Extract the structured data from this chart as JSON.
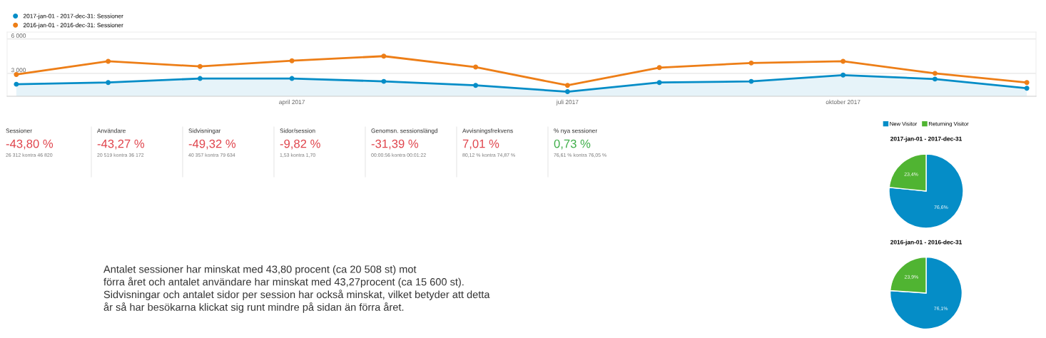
{
  "chart_data": [
    {
      "type": "line",
      "categories": [
        null,
        null,
        null,
        "april 2017",
        null,
        null,
        "juli 2017",
        null,
        null,
        "oktober 2017",
        null,
        null
      ],
      "series": [
        {
          "name": "2017-jan-01 - 2017-dec-31: Sessioner",
          "type": "area",
          "color": "#058dc7",
          "values": [
            2050,
            2200,
            2550,
            2550,
            2300,
            1950,
            1400,
            2200,
            2300,
            2850,
            2500,
            1700
          ]
        },
        {
          "name": "2016-jan-01 - 2016-dec-31: Sessioner",
          "type": "line",
          "color": "#ed7e17",
          "values": [
            2900,
            4050,
            3600,
            4100,
            4500,
            3550,
            1950,
            3500,
            3900,
            4050,
            3000,
            2200
          ]
        }
      ],
      "ylim": [
        1000,
        6600
      ],
      "yticks": [
        {
          "value": 3000,
          "label": "3 000"
        },
        {
          "value": 6000,
          "label": "6 000"
        }
      ],
      "grid": "y",
      "legend": "top left",
      "marker": "circle",
      "line_style": "solid"
    },
    {
      "type": "other",
      "categories": [
        "Sessioner",
        "Användare",
        "Sidvisningar",
        "Sidor/session",
        "Genomsn. sessionslängd",
        "Avvisningsfrekvens",
        "% nya sessioner"
      ],
      "value_labels": [
        "-43,80 %",
        "-43,27 %",
        "-49,32 %",
        "-9,82 %",
        "-31,39 %",
        "7,01 %",
        "0,73 %"
      ],
      "colors": [
        "#e0464e",
        "#e0464e",
        "#e0464e",
        "#e0464e",
        "#e0464e",
        "#e0464e",
        "#3fae49"
      ],
      "annotations": [
        "26 312 kontra 46 820",
        "20 519 kontra 36 172",
        "40 357 kontra 79 634",
        "1,53 kontra 1,70",
        "00:00:56 kontra 00:01:22",
        "80,12 % kontra 74,87 %",
        "76,61 % kontra 76,05 %",
        "Antalet sessioner har minskat med 43,80 procent (ca 20 508 st) mot\nförra året och antalet användare har minskat med 43,27procent (ca 15 600 st).\nSidvisningar och antalet sidor per session har också minskat, vilket betyder att detta\når så har besökarna klickat sig runt mindre på sidan än förra året."
      ]
    },
    {
      "type": "pie",
      "title": "2017-jan-01 - 2017-dec-31",
      "categories": [
        "New Visitor",
        "Returning Visitor"
      ],
      "values": [
        76.6,
        23.4
      ],
      "colors": [
        "#058dc7",
        "#50b432"
      ],
      "value_labels": [
        "76,6%",
        "23,4%"
      ],
      "legend": "top"
    },
    {
      "type": "pie",
      "title": "2016-jan-01 - 2016-dec-31",
      "values": [
        76.1,
        23.9
      ],
      "colors": [
        "#058dc7",
        "#50b432"
      ],
      "value_labels": [
        "76,1%",
        "23,9%"
      ]
    }
  ]
}
